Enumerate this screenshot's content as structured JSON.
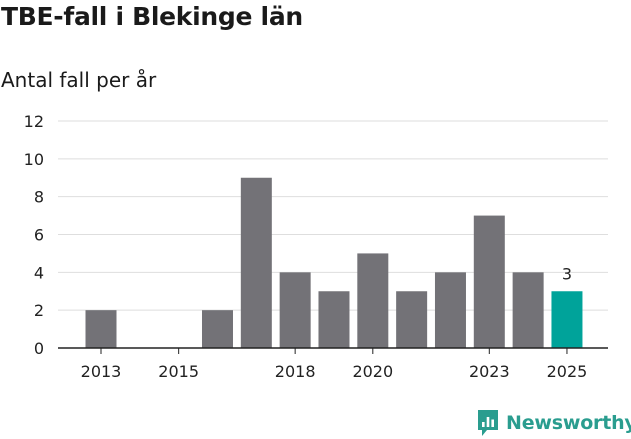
{
  "header": {
    "title": "TBE-fall i Blekinge län",
    "subtitle": "Antal fall per år"
  },
  "brand": {
    "name": "Newsworthy",
    "color": "#2a9d8f"
  },
  "colors": {
    "bar": "#737277",
    "highlight": "#00a39a",
    "grid": "#dedede",
    "axis": "#222222",
    "text": "#222222"
  },
  "chart_data": {
    "type": "bar",
    "title": "TBE-fall i Blekinge län",
    "subtitle": "Antal fall per år",
    "xlabel": "",
    "ylabel": "",
    "categories": [
      "2013",
      "2014",
      "2015",
      "2016",
      "2017",
      "2018",
      "2019",
      "2020",
      "2021",
      "2022",
      "2023",
      "2024",
      "2025"
    ],
    "values": [
      2,
      0,
      0,
      2,
      9,
      4,
      3,
      5,
      3,
      4,
      7,
      4,
      3
    ],
    "highlight_index": 12,
    "data_labels": [
      {
        "index": 12,
        "text": "3"
      }
    ],
    "x_tick_labels": [
      "2013",
      "2015",
      "2018",
      "2020",
      "2023",
      "2025"
    ],
    "y_ticks": [
      0,
      2,
      4,
      6,
      8,
      10,
      12
    ],
    "ylim": [
      0,
      12
    ],
    "grid": true,
    "legend": "none"
  }
}
